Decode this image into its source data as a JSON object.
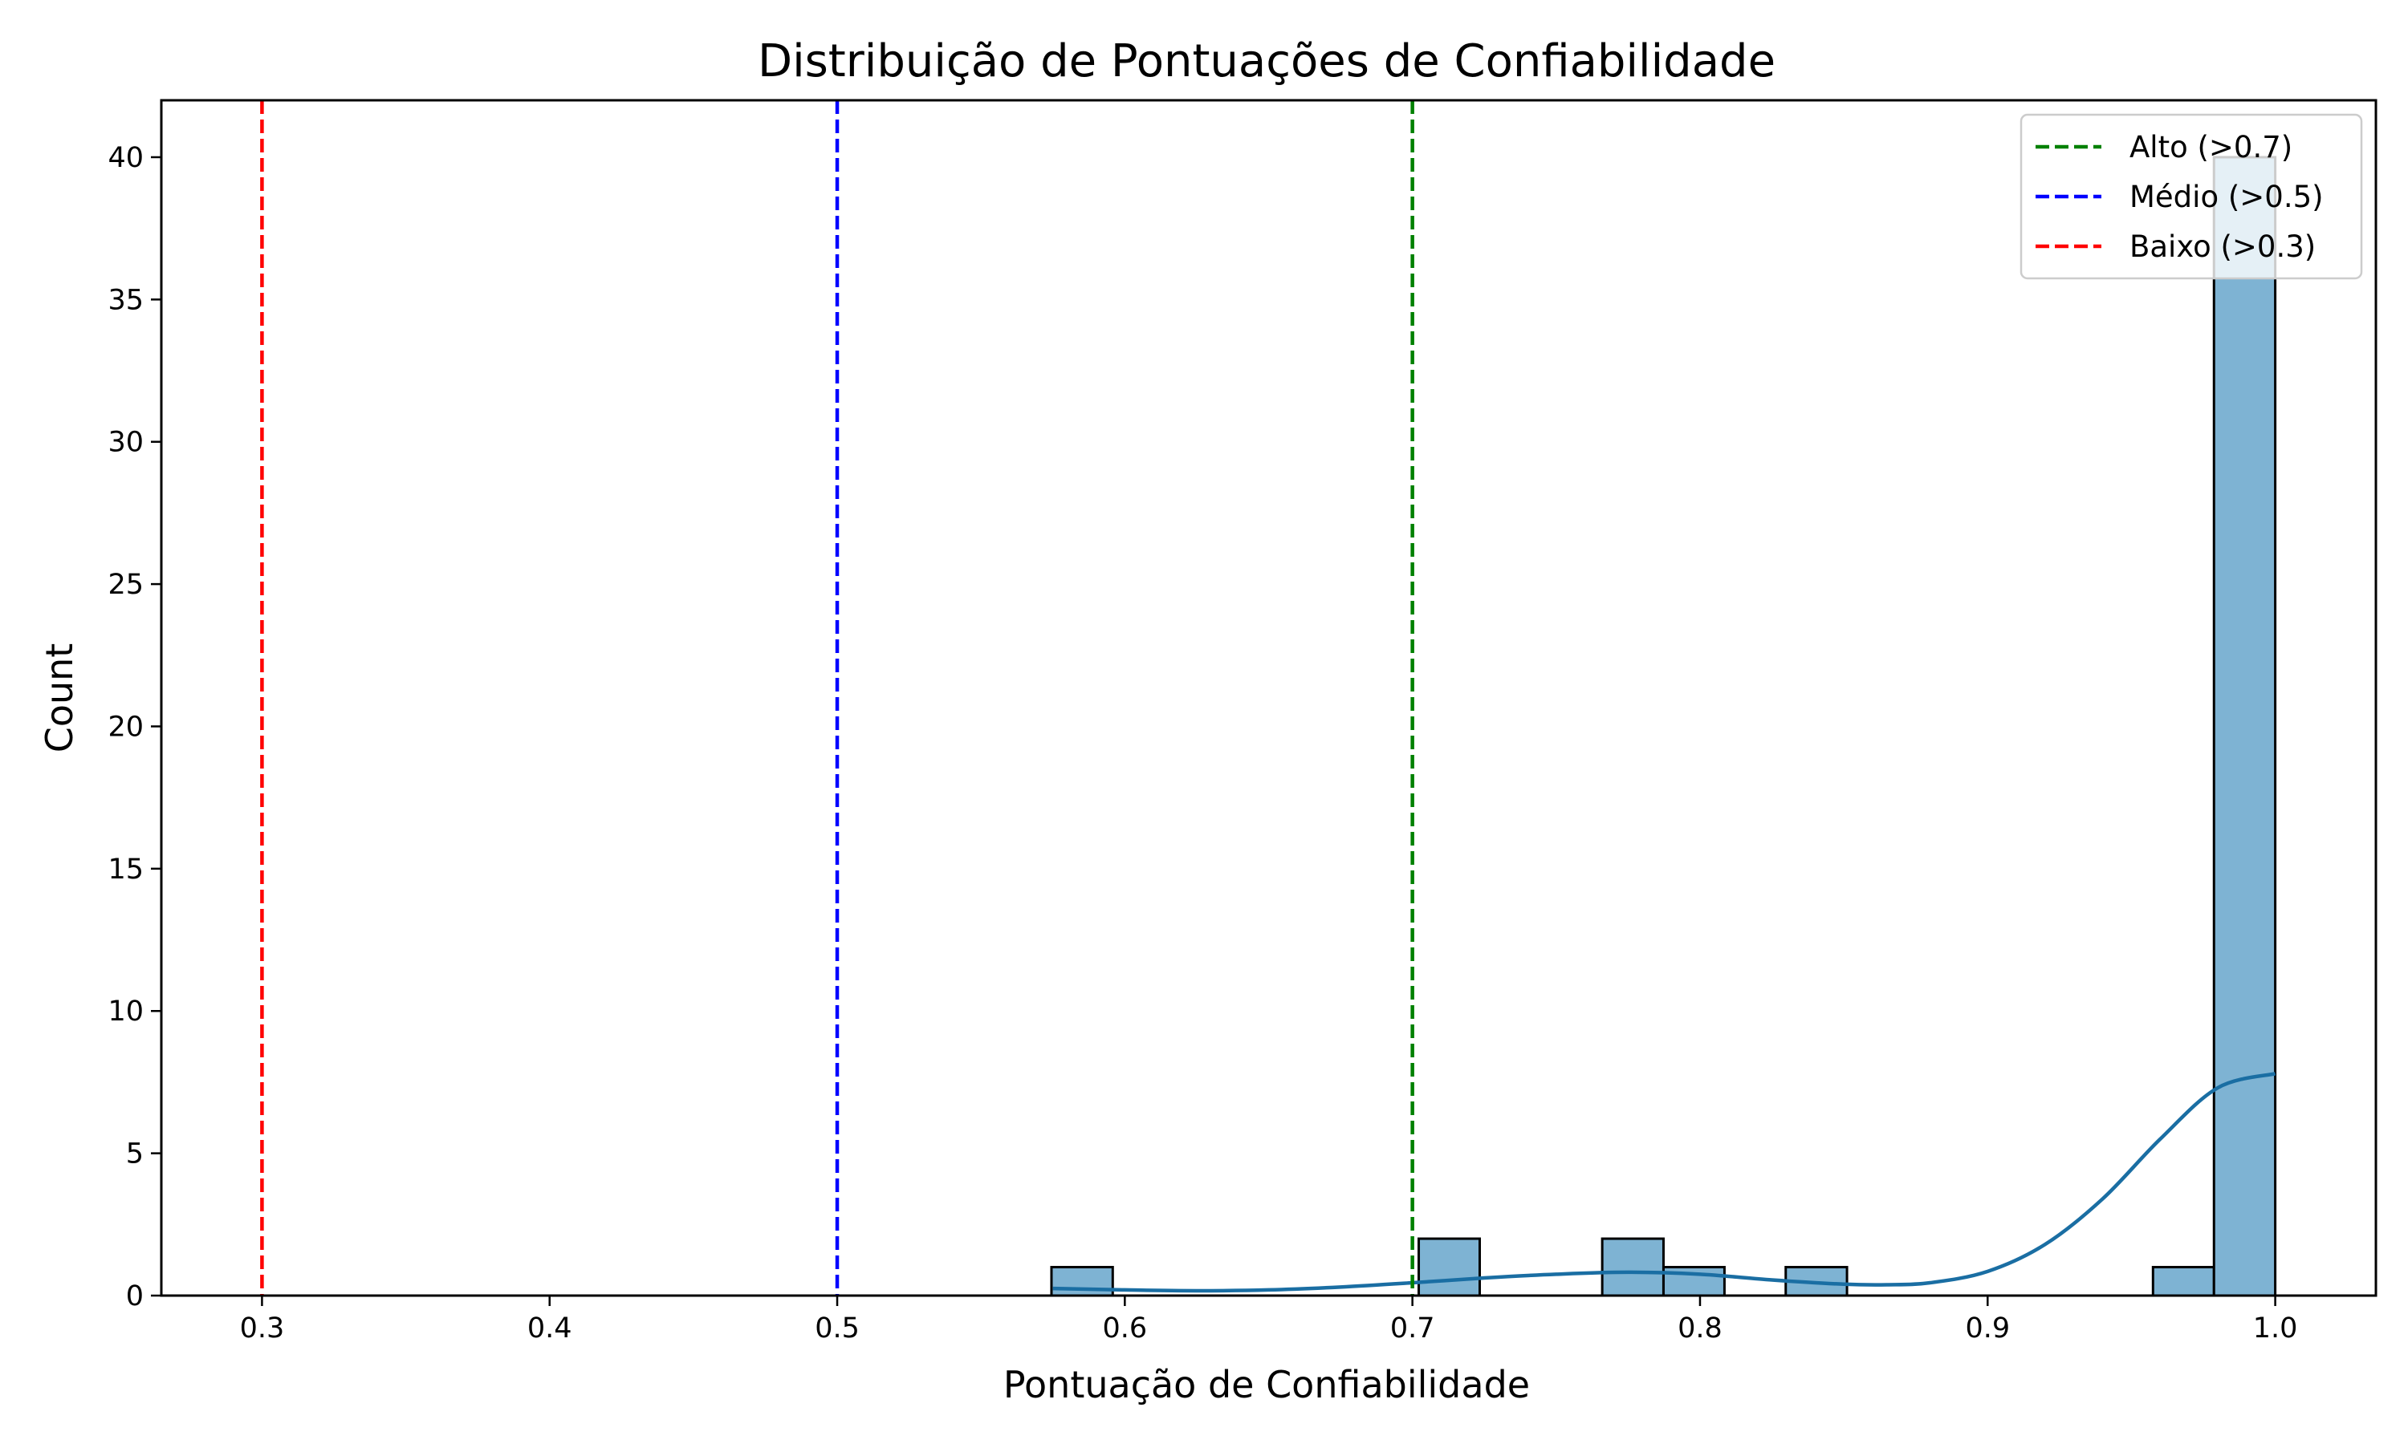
{
  "chart_data": {
    "type": "bar",
    "title": "Distribuição de Pontuações de Confiabilidade",
    "xlabel": "Pontuação de Confiabilidade",
    "ylabel": "Count",
    "xlim": [
      0.265,
      1.035
    ],
    "ylim": [
      0,
      42
    ],
    "xticks": [
      0.3,
      0.4,
      0.5,
      0.6,
      0.7,
      0.8,
      0.9,
      1.0
    ],
    "xtick_labels": [
      "0.3",
      "0.4",
      "0.5",
      "0.6",
      "0.7",
      "0.8",
      "0.9",
      "1.0"
    ],
    "yticks": [
      0,
      5,
      10,
      15,
      20,
      25,
      30,
      35,
      40
    ],
    "ytick_labels": [
      "0",
      "5",
      "10",
      "15",
      "20",
      "25",
      "30",
      "35",
      "40"
    ],
    "bin_edges": [
      0.5745,
      0.5958,
      0.6171,
      0.6383,
      0.6596,
      0.6809,
      0.7022,
      0.7234,
      0.7447,
      0.766,
      0.7873,
      0.8085,
      0.8298,
      0.8511,
      0.8724,
      0.8937,
      0.9149,
      0.9362,
      0.9575,
      0.9787,
      1.0
    ],
    "counts": [
      1,
      0,
      0,
      0,
      0,
      0,
      2,
      0,
      0,
      2,
      1,
      0,
      1,
      0,
      0,
      0,
      0,
      0,
      1,
      40
    ],
    "bar_color": "#7eb3d3",
    "bar_edge_color": "#000000",
    "kde": {
      "color": "#1a6ea3",
      "x": [
        0.575,
        0.6,
        0.625,
        0.65,
        0.675,
        0.7,
        0.725,
        0.75,
        0.775,
        0.8,
        0.825,
        0.85,
        0.865,
        0.88,
        0.9,
        0.92,
        0.94,
        0.96,
        0.98,
        1.0
      ],
      "y": [
        0.25,
        0.2,
        0.17,
        0.2,
        0.3,
        0.45,
        0.62,
        0.75,
        0.82,
        0.75,
        0.55,
        0.4,
        0.38,
        0.45,
        0.85,
        1.8,
        3.4,
        5.5,
        7.3,
        7.8
      ]
    },
    "thresholds": [
      {
        "name": "Alto (>0.7)",
        "x": 0.7,
        "color": "#008000"
      },
      {
        "name": "Médio (>0.5)",
        "x": 0.5,
        "color": "#0000ff"
      },
      {
        "name": "Baixo (>0.3)",
        "x": 0.3,
        "color": "#ff0000"
      }
    ],
    "legend_position": "top-right",
    "grid": false
  }
}
